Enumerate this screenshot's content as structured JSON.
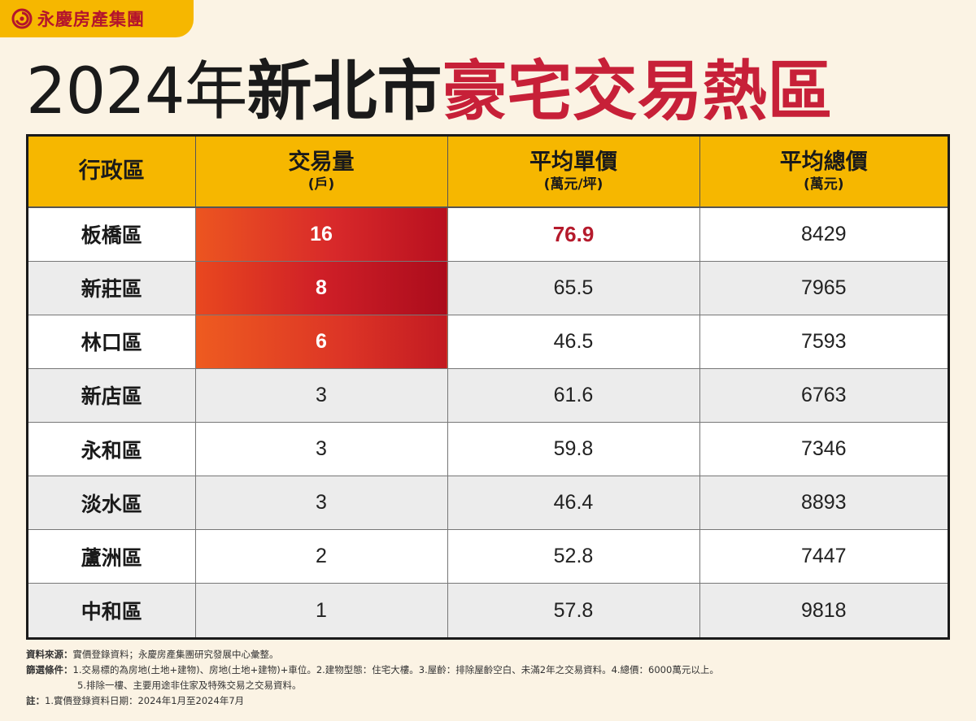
{
  "brand": {
    "name": "永慶房產集團",
    "logo_icon": "swirl-logo-icon",
    "accent": "#f6b700",
    "brand_color": "#b4142c"
  },
  "title": {
    "year": "2024年",
    "region": "新北市",
    "topic": "豪宅交易熱區"
  },
  "chart_data": {
    "type": "table",
    "columns": [
      {
        "label": "行政區",
        "unit": ""
      },
      {
        "label": "交易量",
        "unit": "(戶)"
      },
      {
        "label": "平均單價",
        "unit": "(萬元/坪)"
      },
      {
        "label": "平均總價",
        "unit": "(萬元)"
      }
    ],
    "rows": [
      {
        "district": "板橋區",
        "volume": "16",
        "unit_price": "76.9",
        "total_price": "8429"
      },
      {
        "district": "新莊區",
        "volume": "8",
        "unit_price": "65.5",
        "total_price": "7965"
      },
      {
        "district": "林口區",
        "volume": "6",
        "unit_price": "46.5",
        "total_price": "7593"
      },
      {
        "district": "新店區",
        "volume": "3",
        "unit_price": "61.6",
        "total_price": "6763"
      },
      {
        "district": "永和區",
        "volume": "3",
        "unit_price": "59.8",
        "total_price": "7346"
      },
      {
        "district": "淡水區",
        "volume": "3",
        "unit_price": "46.4",
        "total_price": "8893"
      },
      {
        "district": "蘆洲區",
        "volume": "2",
        "unit_price": "52.8",
        "total_price": "7447"
      },
      {
        "district": "中和區",
        "volume": "1",
        "unit_price": "57.8",
        "total_price": "9818"
      }
    ],
    "highlight_colors": {
      "hot_gradient_start": "#ec5520",
      "hot_gradient_end": "#b8101f",
      "top_price": "#b51a2c"
    }
  },
  "notes": {
    "source_label": "資料來源：",
    "source_text": "實價登錄資料；永慶房產集團研究發展中心彙整。",
    "filter_label": "篩選條件：",
    "filter_text": "1.交易標的為房地(土地+建物)、房地(土地+建物)+車位。2.建物型態：住宅大樓。3.屋齡：排除屋齡空白、未滿2年之交易資料。4.總價：6000萬元以上。",
    "filter_text_2": "5.排除一樓、主要用途非住家及特殊交易之交易資料。",
    "note_label": "註：",
    "note_text": "1.實價登錄資料日期：2024年1月至2024年7月"
  }
}
